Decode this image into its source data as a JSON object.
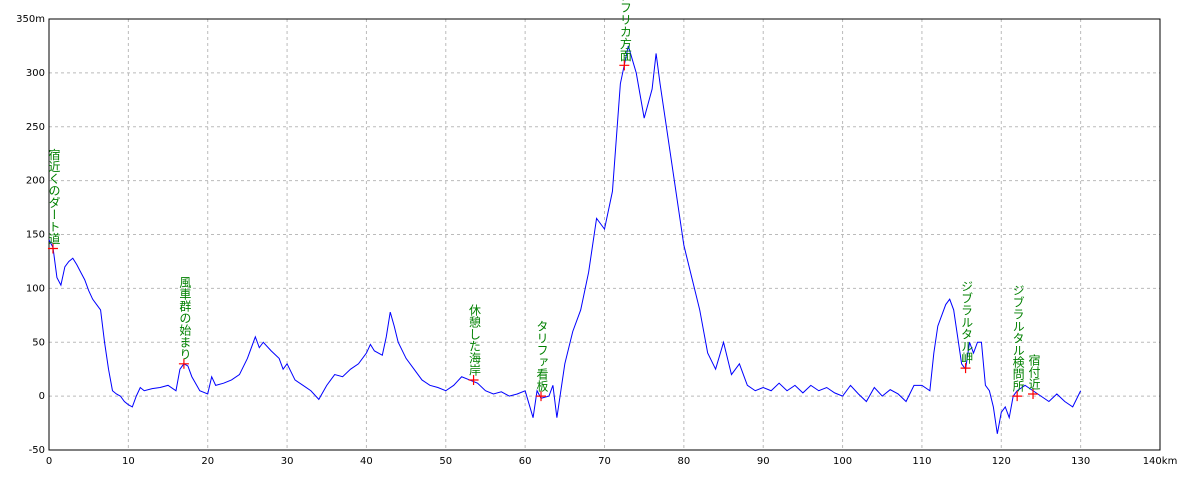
{
  "chart_data": {
    "type": "line",
    "x": [
      0,
      0.5,
      1,
      1.5,
      2,
      2.5,
      3,
      3.5,
      4,
      4.5,
      5,
      5.5,
      6,
      6.5,
      7,
      7.5,
      8,
      8.5,
      9,
      9.5,
      10,
      10.5,
      11,
      11.5,
      12,
      13,
      14,
      15,
      16,
      16.5,
      17,
      17.5,
      18,
      19,
      20,
      20.5,
      21,
      22,
      23,
      24,
      25,
      26,
      26.5,
      27,
      28,
      29,
      29.5,
      30,
      31,
      32,
      33,
      34,
      35,
      36,
      37,
      38,
      39,
      40,
      40.5,
      41,
      42,
      42.5,
      43,
      43.5,
      44,
      45,
      46,
      47,
      48,
      49,
      50,
      51,
      52,
      53,
      54,
      55,
      56,
      57,
      58,
      59,
      60,
      61,
      61.5,
      62,
      63,
      63.5,
      64,
      64.5,
      65,
      66,
      67,
      68,
      69,
      70,
      71,
      71.5,
      72,
      73,
      74,
      75,
      76,
      76.5,
      77,
      78,
      79,
      80,
      81,
      82,
      83,
      84,
      85,
      86,
      87,
      88,
      89,
      90,
      91,
      92,
      93,
      94,
      95,
      96,
      97,
      98,
      99,
      100,
      101,
      102,
      103,
      104,
      105,
      106,
      107,
      108,
      109,
      110,
      111,
      111.5,
      112,
      113,
      113.5,
      114,
      115,
      115.5,
      116,
      116.5,
      117,
      117.5,
      118,
      118.5,
      119,
      119.5,
      120,
      120.5,
      121,
      121.5,
      122,
      123,
      124,
      125,
      126,
      127,
      128,
      129,
      130
    ],
    "series": [
      {
        "color": "#0000ff",
        "values": [
          145,
          138,
          110,
          103,
          120,
          125,
          128,
          122,
          115,
          108,
          98,
          90,
          85,
          80,
          50,
          25,
          5,
          2,
          0,
          -5,
          -8,
          -10,
          0,
          8,
          5,
          7,
          8,
          10,
          5,
          25,
          30,
          28,
          18,
          5,
          2,
          18,
          10,
          12,
          15,
          20,
          35,
          55,
          45,
          50,
          42,
          35,
          25,
          30,
          15,
          10,
          5,
          -3,
          10,
          20,
          18,
          25,
          30,
          40,
          48,
          42,
          38,
          55,
          78,
          65,
          50,
          35,
          25,
          15,
          10,
          8,
          5,
          10,
          18,
          15,
          12,
          5,
          2,
          4,
          0,
          2,
          5,
          -20,
          5,
          -2,
          0,
          10,
          -20,
          5,
          30,
          60,
          80,
          115,
          165,
          155,
          190,
          240,
          290,
          325,
          300,
          258,
          285,
          318,
          290,
          240,
          190,
          140,
          110,
          80,
          40,
          25,
          50,
          20,
          30,
          10,
          5,
          8,
          5,
          12,
          5,
          10,
          3,
          10,
          5,
          8,
          3,
          0,
          10,
          2,
          -5,
          8,
          0,
          6,
          2,
          -5,
          10,
          10,
          5,
          40,
          65,
          85,
          90,
          80,
          30,
          25,
          50,
          40,
          50,
          50,
          10,
          5,
          -10,
          -35,
          -15,
          -10,
          -20,
          0,
          5,
          10,
          5,
          0,
          -5,
          2,
          -5,
          -10,
          5
        ]
      }
    ],
    "annotations": [
      {
        "x": 0.5,
        "y": 137,
        "label": "宿近くのダート道"
      },
      {
        "x": 17,
        "y": 30,
        "label": "風車群の始まり"
      },
      {
        "x": 53.5,
        "y": 15,
        "label": "休憩した海岸"
      },
      {
        "x": 62,
        "y": 0,
        "label": "タリファ看板"
      },
      {
        "x": 72.5,
        "y": 307,
        "label": "峠茶屋　アフリカ方面"
      },
      {
        "x": 115.5,
        "y": 26,
        "label": "ジブラルタル岬"
      },
      {
        "x": 122,
        "y": 0,
        "label": "ジブラルタル検問所"
      },
      {
        "x": 124,
        "y": 2,
        "label": "宿付近"
      }
    ],
    "marker_color": "#ff0000",
    "annotation_color": "#008000",
    "xlim": [
      0,
      140
    ],
    "ylim": [
      -50,
      350
    ],
    "xticks": [
      0,
      10,
      20,
      30,
      40,
      50,
      60,
      70,
      80,
      90,
      100,
      110,
      120,
      130,
      {
        "value": 140,
        "label": "140km"
      }
    ],
    "yticks": [
      -50,
      0,
      50,
      100,
      150,
      200,
      250,
      300,
      {
        "value": 350,
        "label": "350m"
      }
    ],
    "grid": true
  }
}
